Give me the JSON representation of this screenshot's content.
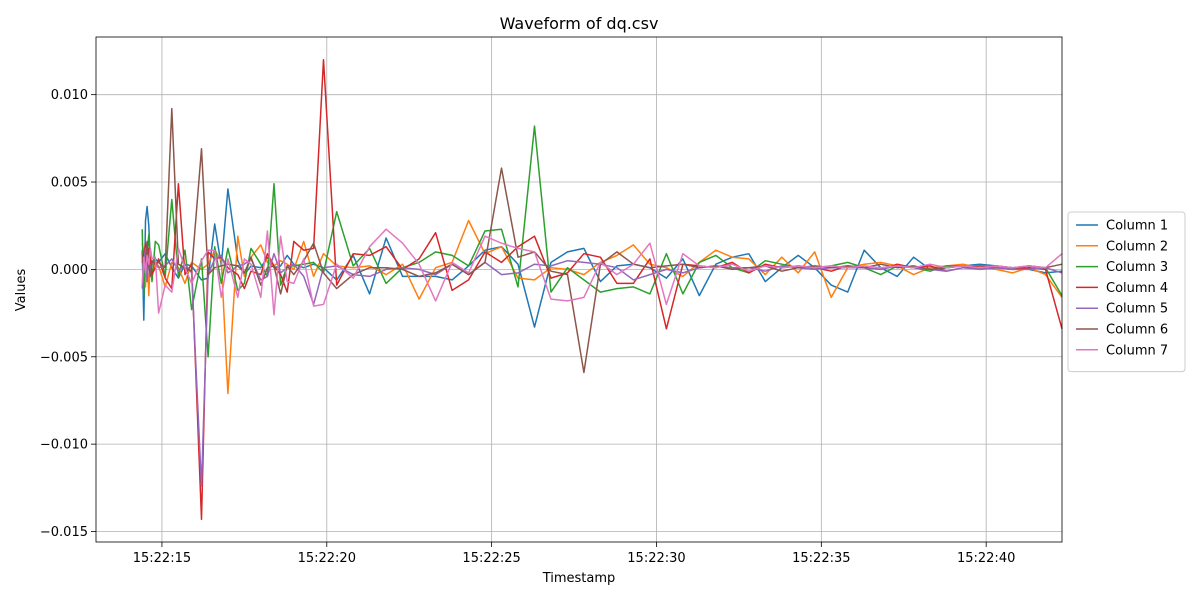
{
  "chart_data": {
    "type": "line",
    "title": "Waveform of dq.csv",
    "xlabel": "Timestamp",
    "ylabel": "Values",
    "x_unit": "seconds after 15:22:10",
    "x_ticks": [
      {
        "v": 5,
        "label": "15:22:15"
      },
      {
        "v": 10,
        "label": "15:22:20"
      },
      {
        "v": 15,
        "label": "15:22:25"
      },
      {
        "v": 20,
        "label": "15:22:30"
      },
      {
        "v": 25,
        "label": "15:22:35"
      },
      {
        "v": 30,
        "label": "15:22:40"
      }
    ],
    "xlim": [
      3.0,
      32.3
    ],
    "ylim": [
      -0.0156,
      0.0133
    ],
    "y_ticks": [
      {
        "v": 0.01,
        "label": "0.010"
      },
      {
        "v": 0.005,
        "label": "0.005"
      },
      {
        "v": 0.0,
        "label": "0.000"
      },
      {
        "v": -0.005,
        "label": "−0.005"
      },
      {
        "v": -0.01,
        "label": "−0.010"
      },
      {
        "v": -0.015,
        "label": "−0.015"
      }
    ],
    "grid": true,
    "legend_position": "right, outside plot area",
    "x": [
      4.4,
      4.45,
      4.5,
      4.55,
      4.6,
      4.65,
      4.7,
      4.8,
      4.9,
      5.1,
      5.3,
      5.5,
      5.7,
      5.9,
      6.2,
      6.4,
      6.6,
      6.8,
      7.0,
      7.3,
      7.5,
      7.7,
      8.0,
      8.2,
      8.4,
      8.6,
      8.8,
      9.0,
      9.3,
      9.6,
      9.9,
      10.3,
      10.8,
      11.3,
      11.8,
      12.3,
      12.8,
      13.3,
      13.8,
      14.3,
      14.8,
      15.3,
      15.8,
      16.3,
      16.8,
      17.3,
      17.8,
      18.3,
      18.8,
      19.3,
      19.8,
      20.3,
      20.8,
      21.3,
      21.8,
      22.3,
      22.8,
      23.3,
      23.8,
      24.3,
      24.8,
      25.3,
      25.8,
      26.3,
      26.8,
      27.3,
      27.8,
      28.3,
      28.8,
      29.3,
      29.8,
      30.3,
      30.8,
      31.3,
      31.8,
      32.3
    ],
    "series": [
      {
        "name": "Column 1",
        "color": "#1f77b4",
        "values": [
          0.0011,
          -0.0029,
          0.0028,
          0.0036,
          0.0025,
          0.0003,
          -0.0002,
          0.0006,
          0.0004,
          0.0009,
          0.0001,
          -0.0005,
          0.0003,
          0.0002,
          -0.0006,
          -0.0005,
          0.0026,
          0.0002,
          0.0046,
          0.0005,
          -0.0003,
          0.0002,
          0.0001,
          0.0007,
          0.0001,
          0.0002,
          0.0008,
          0.0003,
          0.0001,
          0.0003,
          0.0001,
          -0.0006,
          0.0008,
          -0.0014,
          0.0018,
          -0.0004,
          -0.0004,
          -0.0004,
          -0.0006,
          0.0002,
          0.0011,
          0.0013,
          0.0003,
          -0.0033,
          0.0004,
          0.001,
          0.0012,
          -0.0007,
          0.0002,
          0.0003,
          0.0001,
          -0.0005,
          0.0006,
          -0.0015,
          0.0003,
          0.0007,
          0.0009,
          -0.0007,
          0.0001,
          0.0008,
          0.0001,
          -0.0009,
          -0.0013,
          0.0011,
          0.0001,
          -0.0004,
          0.0007,
          0.0,
          0.0001,
          0.0002,
          0.0003,
          0.0002,
          0.0001,
          0.0,
          -0.0002,
          -0.0001
        ]
      },
      {
        "name": "Column 2",
        "color": "#ff7f0e",
        "values": [
          0.0015,
          0.001,
          -0.001,
          0.0012,
          -0.0015,
          0.0008,
          -0.0003,
          0.0004,
          0.0002,
          -0.001,
          0.0004,
          0.0001,
          -0.0008,
          0.0004,
          0.0,
          0.0003,
          0.0011,
          0.0005,
          -0.0071,
          0.0019,
          -0.0004,
          0.0007,
          0.0014,
          0.0004,
          0.0002,
          0.0005,
          0.0003,
          0.0,
          0.0016,
          -0.0004,
          0.0009,
          0.0002,
          0.0001,
          0.0002,
          -0.0003,
          0.0003,
          -0.0017,
          0.0001,
          0.0004,
          0.0028,
          0.0009,
          0.0013,
          -0.0005,
          -0.0006,
          0.0001,
          0.0,
          -0.0003,
          0.0004,
          0.0008,
          0.0014,
          0.0003,
          0.0001,
          -0.0004,
          0.0004,
          0.0011,
          0.0007,
          0.0006,
          -0.0003,
          0.0007,
          -0.0002,
          0.001,
          -0.0016,
          0.0001,
          0.0003,
          0.0004,
          0.0002,
          -0.0003,
          0.0001,
          0.0002,
          0.0003,
          0.0001,
          0.0,
          -0.0002,
          0.0001,
          -0.0003,
          -0.0016
        ]
      },
      {
        "name": "Column 3",
        "color": "#2ca02c",
        "values": [
          0.0023,
          -0.0015,
          0.0015,
          0.0009,
          0.002,
          0.0004,
          -0.0007,
          0.0016,
          0.0014,
          -0.0004,
          0.004,
          -0.0004,
          0.0011,
          -0.0023,
          0.0006,
          -0.005,
          0.0013,
          -0.0008,
          0.0012,
          -0.0012,
          -0.0008,
          0.0012,
          0.0003,
          -0.0004,
          0.0049,
          -0.0009,
          0.0002,
          0.0002,
          0.0003,
          0.0004,
          -0.0002,
          0.0033,
          0.0002,
          0.0012,
          -0.0008,
          0.0001,
          0.0004,
          0.001,
          0.0008,
          0.0002,
          0.0022,
          0.0023,
          -0.001,
          0.0082,
          -0.0013,
          0.0001,
          -0.0006,
          -0.0013,
          -0.0011,
          -0.001,
          -0.0014,
          0.0009,
          -0.0014,
          0.0004,
          0.0008,
          0.0001,
          -0.0002,
          0.0005,
          0.0003,
          0.0001,
          0.0001,
          0.0002,
          0.0004,
          0.0001,
          -0.0003,
          0.0002,
          0.0001,
          -0.0001,
          0.0002,
          0.0002,
          0.0,
          0.0001,
          0.0,
          0.0002,
          0.0001,
          -0.0015
        ]
      },
      {
        "name": "Column 4",
        "color": "#d62728",
        "values": [
          0.0004,
          0.0008,
          0.0015,
          -0.0004,
          0.0012,
          0.0006,
          -0.0003,
          0.0001,
          0.0006,
          -0.0005,
          -0.0011,
          0.0049,
          -0.0003,
          0.0003,
          -0.0143,
          0.001,
          0.0006,
          0.0007,
          0.0001,
          -0.0003,
          -0.0011,
          -0.0001,
          -0.0003,
          0.0009,
          0.0002,
          -0.0003,
          -0.0013,
          0.0016,
          0.0011,
          0.0012,
          0.012,
          -0.0009,
          0.0009,
          0.0008,
          0.0013,
          0.0,
          0.0006,
          0.0021,
          -0.0012,
          -0.0006,
          0.001,
          0.0004,
          0.0013,
          0.0019,
          -0.0005,
          -0.0002,
          0.0009,
          0.0007,
          -0.0008,
          -0.0008,
          0.0006,
          -0.0034,
          0.0003,
          0.0002,
          0.0001,
          0.0004,
          -0.0002,
          0.0003,
          0.0001,
          0.0002,
          0.0001,
          -0.0001,
          0.0002,
          0.0001,
          0.0,
          0.0003,
          0.0001,
          0.0002,
          -0.0001,
          0.0001,
          0.0002,
          0.0001,
          0.0,
          0.0001,
          0.0,
          -0.0034
        ]
      },
      {
        "name": "Column 5",
        "color": "#9467bd",
        "values": [
          -0.0011,
          0.0003,
          0.0012,
          -0.0007,
          0.0006,
          -0.0002,
          0.0004,
          0.0003,
          0.0001,
          0.0002,
          0.0006,
          -0.0001,
          0.0003,
          -0.0002,
          -0.0124,
          -0.0003,
          0.0006,
          0.0008,
          -0.0002,
          0.0002,
          0.0003,
          0.0006,
          -0.0006,
          -0.0004,
          0.0009,
          -0.0002,
          0.0001,
          0.0003,
          -0.0004,
          -0.002,
          0.0001,
          0.0002,
          -0.0003,
          -0.0004,
          0.0,
          0.0001,
          0.0,
          -0.0003,
          0.0003,
          -0.0003,
          0.0004,
          -0.0003,
          -0.0002,
          0.0003,
          0.0002,
          0.0005,
          0.0004,
          0.0003,
          0.0001,
          -0.0006,
          -0.0003,
          0.0,
          -0.0002,
          0.0001,
          0.0002,
          0.0001,
          0.0001,
          -0.0001,
          0.0002,
          0.0001,
          0.0,
          0.0001,
          0.0001,
          0.0001,
          0.0,
          0.0002,
          0.0001,
          0.0,
          -0.0001,
          0.0001,
          0.0,
          0.0001,
          0.0,
          0.0,
          0.0001,
          -0.0002
        ]
      },
      {
        "name": "Column 6",
        "color": "#8c564b",
        "values": [
          0.0009,
          0.0002,
          0.0005,
          0.0016,
          0.0003,
          -0.0004,
          0.0005,
          0.0003,
          0.0004,
          0.0001,
          0.0092,
          0.0003,
          0.0001,
          -0.0001,
          0.0069,
          -0.0003,
          0.0001,
          0.0002,
          0.0003,
          0.0002,
          -0.0002,
          0.0007,
          -0.0009,
          0.0001,
          0.0002,
          -0.0014,
          0.0002,
          -0.0003,
          0.0005,
          0.0015,
          -0.0002,
          -0.0011,
          -0.0003,
          0.0001,
          0.0001,
          0.0,
          -0.0004,
          -0.0002,
          0.0003,
          -0.0003,
          0.0004,
          0.0058,
          0.0007,
          0.001,
          -0.0001,
          -0.0003,
          -0.0059,
          0.0003,
          0.001,
          0.0003,
          0.0001,
          0.0002,
          0.0003,
          0.0001,
          0.0002,
          0.0,
          0.0001,
          0.0002,
          -0.0001,
          0.0001,
          0.0002,
          0.0001,
          0.0002,
          0.0001,
          0.0003,
          0.0001,
          0.0002,
          0.0,
          0.0001,
          0.0002,
          0.0001,
          0.0002,
          0.0001,
          0.0002,
          0.0001,
          0.0003
        ]
      },
      {
        "name": "Column 7",
        "color": "#e377c2",
        "values": [
          -0.0008,
          0.0007,
          -0.0002,
          0.0008,
          0.0003,
          0.0012,
          0.0006,
          0.0007,
          -0.0025,
          -0.0009,
          -0.0013,
          0.0012,
          0.0001,
          -0.0008,
          0.0005,
          0.0011,
          0.0011,
          -0.0016,
          0.0006,
          -0.0016,
          0.0006,
          0.0003,
          -0.0016,
          0.0022,
          -0.0026,
          0.0019,
          -0.0007,
          -0.0008,
          0.0006,
          -0.0021,
          -0.002,
          0.0003,
          -0.0005,
          0.0013,
          0.0023,
          0.0015,
          0.0003,
          -0.0018,
          0.0004,
          -0.0002,
          0.0019,
          0.0015,
          0.0012,
          0.001,
          -0.0017,
          -0.0018,
          -0.0016,
          0.0004,
          -0.0003,
          0.0003,
          0.0015,
          -0.002,
          0.0009,
          0.0002,
          0.0001,
          0.0003,
          -0.0001,
          0.0002,
          0.0001,
          0.0002,
          0.0001,
          0.0002,
          0.0001,
          0.0002,
          0.0001,
          0.0002,
          0.0001,
          0.0003,
          0.0001,
          0.0002,
          0.0001,
          0.0002,
          0.0001,
          0.0002,
          0.0001,
          0.0009
        ]
      }
    ]
  }
}
